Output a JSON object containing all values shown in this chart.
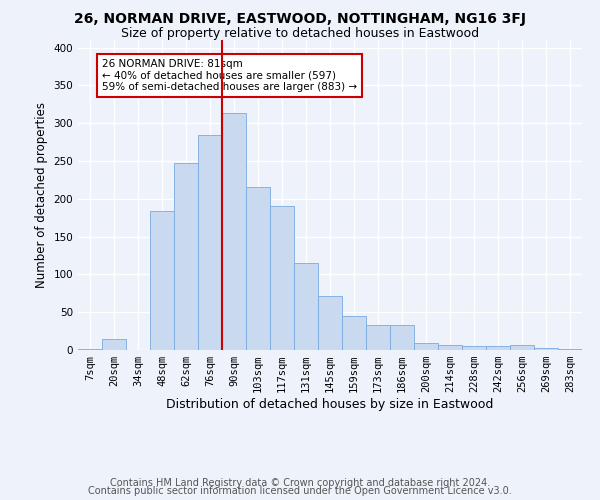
{
  "title1": "26, NORMAN DRIVE, EASTWOOD, NOTTINGHAM, NG16 3FJ",
  "title2": "Size of property relative to detached houses in Eastwood",
  "xlabel": "Distribution of detached houses by size in Eastwood",
  "ylabel": "Number of detached properties",
  "bin_labels": [
    "7sqm",
    "20sqm",
    "34sqm",
    "48sqm",
    "62sqm",
    "76sqm",
    "90sqm",
    "103sqm",
    "117sqm",
    "131sqm",
    "145sqm",
    "159sqm",
    "173sqm",
    "186sqm",
    "200sqm",
    "214sqm",
    "228sqm",
    "242sqm",
    "256sqm",
    "269sqm",
    "283sqm"
  ],
  "bar_heights": [
    1,
    15,
    0,
    184,
    247,
    284,
    313,
    215,
    190,
    115,
    72,
    45,
    33,
    33,
    9,
    6,
    5,
    5,
    6,
    2,
    1
  ],
  "bar_color": "#c9d9f0",
  "bar_edge_color": "#7aaae0",
  "vline_color": "#cc0000",
  "annotation_title": "26 NORMAN DRIVE: 81sqm",
  "annotation_line1": "← 40% of detached houses are smaller (597)",
  "annotation_line2": "59% of semi-detached houses are larger (883) →",
  "annotation_box_color": "#ffffff",
  "annotation_box_edge": "#cc0000",
  "ylim": [
    0,
    410
  ],
  "yticks": [
    0,
    50,
    100,
    150,
    200,
    250,
    300,
    350,
    400
  ],
  "footer1": "Contains HM Land Registry data © Crown copyright and database right 2024.",
  "footer2": "Contains public sector information licensed under the Open Government Licence v3.0.",
  "bg_color": "#eef2fb",
  "grid_color": "#ffffff",
  "title1_fontsize": 10,
  "title2_fontsize": 9,
  "xlabel_fontsize": 9,
  "ylabel_fontsize": 8.5,
  "tick_fontsize": 7.5,
  "annot_fontsize": 7.5,
  "footer_fontsize": 7
}
